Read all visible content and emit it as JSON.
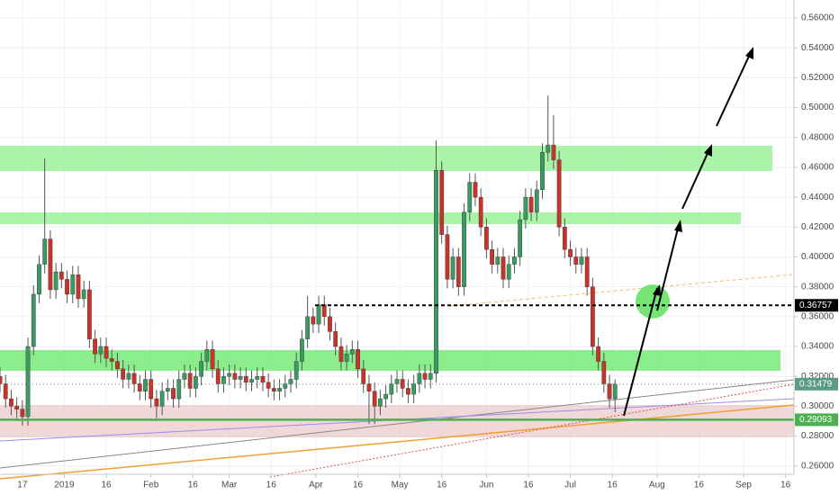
{
  "chart_data": {
    "type": "candlestick",
    "xlim": [
      -8,
      276
    ],
    "xticks": [
      {
        "value": 0,
        "label": "17"
      },
      {
        "value": 15,
        "label": "2019"
      },
      {
        "value": 30,
        "label": "16"
      },
      {
        "value": 46,
        "label": "Feb"
      },
      {
        "value": 61,
        "label": "16"
      },
      {
        "value": 74,
        "label": "Mar"
      },
      {
        "value": 89,
        "label": "16"
      },
      {
        "value": 105,
        "label": "Apr"
      },
      {
        "value": 120,
        "label": "16"
      },
      {
        "value": 135,
        "label": "May"
      },
      {
        "value": 150,
        "label": "16"
      },
      {
        "value": 166,
        "label": "Jun"
      },
      {
        "value": 181,
        "label": "16"
      },
      {
        "value": 196,
        "label": "Jul"
      },
      {
        "value": 211,
        "label": "16"
      },
      {
        "value": 227,
        "label": "Aug"
      },
      {
        "value": 242,
        "label": "16"
      },
      {
        "value": 258,
        "label": "Sep"
      },
      {
        "value": 273,
        "label": "16"
      }
    ],
    "ylim": [
      0.2544,
      0.5721
    ],
    "yticks": [
      {
        "value": 0.26,
        "label": "0.26000"
      },
      {
        "value": 0.28,
        "label": "0.28000"
      },
      {
        "value": 0.3,
        "label": "0.30000"
      },
      {
        "value": 0.32,
        "label": "0.32000"
      },
      {
        "value": 0.34,
        "label": "0.34000"
      },
      {
        "value": 0.36,
        "label": "0.36000"
      },
      {
        "value": 0.38,
        "label": "0.38000"
      },
      {
        "value": 0.4,
        "label": "0.40000"
      },
      {
        "value": 0.42,
        "label": "0.42000"
      },
      {
        "value": 0.44,
        "label": "0.44000"
      },
      {
        "value": 0.46,
        "label": "0.46000"
      },
      {
        "value": 0.48,
        "label": "0.48000"
      },
      {
        "value": 0.5,
        "label": "0.50000"
      },
      {
        "value": 0.52,
        "label": "0.52000"
      },
      {
        "value": 0.54,
        "label": "0.54000"
      },
      {
        "value": 0.56,
        "label": "0.56000"
      }
    ],
    "grid": true,
    "up_color": "#3a9a62",
    "down_color": "#c8332b",
    "wick_color": "#555555",
    "x": [
      -8,
      -6,
      -4,
      -2,
      0,
      2,
      4,
      6,
      8,
      10,
      12,
      14,
      16,
      18,
      20,
      22,
      24,
      26,
      28,
      30,
      32,
      34,
      36,
      38,
      40,
      42,
      44,
      46,
      48,
      50,
      52,
      54,
      56,
      58,
      60,
      62,
      64,
      66,
      68,
      70,
      72,
      74,
      76,
      78,
      80,
      82,
      84,
      86,
      88,
      90,
      92,
      94,
      96,
      98,
      100,
      102,
      104,
      106,
      108,
      110,
      112,
      114,
      116,
      118,
      120,
      122,
      124,
      126,
      128,
      130,
      132,
      134,
      136,
      138,
      140,
      142,
      144,
      146,
      148,
      150,
      152,
      154,
      156,
      158,
      160,
      162,
      164,
      166,
      168,
      170,
      172,
      174,
      176,
      178,
      180,
      182,
      184,
      186,
      188,
      190,
      192,
      194,
      196,
      198,
      200,
      202,
      204,
      206,
      208,
      210,
      212
    ],
    "candles": [
      [
        0.32,
        0.326,
        0.309,
        0.315
      ],
      [
        0.315,
        0.321,
        0.299,
        0.305
      ],
      [
        0.305,
        0.311,
        0.294,
        0.3
      ],
      [
        0.3,
        0.306,
        0.292,
        0.298
      ],
      [
        0.298,
        0.304,
        0.287,
        0.293
      ],
      [
        0.293,
        0.346,
        0.287,
        0.34
      ],
      [
        0.34,
        0.381,
        0.334,
        0.375
      ],
      [
        0.375,
        0.401,
        0.369,
        0.395
      ],
      [
        0.395,
        0.466,
        0.389,
        0.412
      ],
      [
        0.412,
        0.418,
        0.372,
        0.378
      ],
      [
        0.378,
        0.396,
        0.372,
        0.39
      ],
      [
        0.39,
        0.396,
        0.379,
        0.385
      ],
      [
        0.385,
        0.391,
        0.369,
        0.375
      ],
      [
        0.375,
        0.394,
        0.369,
        0.388
      ],
      [
        0.388,
        0.394,
        0.366,
        0.372
      ],
      [
        0.372,
        0.384,
        0.366,
        0.378
      ],
      [
        0.378,
        0.384,
        0.339,
        0.345
      ],
      [
        0.345,
        0.351,
        0.329,
        0.335
      ],
      [
        0.335,
        0.346,
        0.329,
        0.34
      ],
      [
        0.34,
        0.346,
        0.326,
        0.332
      ],
      [
        0.332,
        0.338,
        0.324,
        0.33
      ],
      [
        0.33,
        0.336,
        0.319,
        0.325
      ],
      [
        0.325,
        0.331,
        0.312,
        0.318
      ],
      [
        0.318,
        0.328,
        0.312,
        0.322
      ],
      [
        0.322,
        0.328,
        0.309,
        0.315
      ],
      [
        0.315,
        0.321,
        0.304,
        0.31
      ],
      [
        0.31,
        0.324,
        0.304,
        0.318
      ],
      [
        0.318,
        0.324,
        0.299,
        0.305
      ],
      [
        0.305,
        0.311,
        0.292,
        0.3
      ],
      [
        0.3,
        0.316,
        0.294,
        0.31
      ],
      [
        0.31,
        0.318,
        0.304,
        0.312
      ],
      [
        0.312,
        0.318,
        0.299,
        0.305
      ],
      [
        0.305,
        0.324,
        0.299,
        0.318
      ],
      [
        0.318,
        0.328,
        0.312,
        0.322
      ],
      [
        0.322,
        0.328,
        0.306,
        0.312
      ],
      [
        0.312,
        0.326,
        0.306,
        0.32
      ],
      [
        0.32,
        0.336,
        0.314,
        0.33
      ],
      [
        0.33,
        0.344,
        0.324,
        0.338
      ],
      [
        0.338,
        0.344,
        0.319,
        0.325
      ],
      [
        0.325,
        0.331,
        0.309,
        0.315
      ],
      [
        0.315,
        0.326,
        0.309,
        0.32
      ],
      [
        0.32,
        0.328,
        0.314,
        0.322
      ],
      [
        0.322,
        0.328,
        0.312,
        0.318
      ],
      [
        0.318,
        0.326,
        0.312,
        0.32
      ],
      [
        0.32,
        0.326,
        0.31,
        0.316
      ],
      [
        0.316,
        0.324,
        0.31,
        0.318
      ],
      [
        0.318,
        0.326,
        0.312,
        0.32
      ],
      [
        0.32,
        0.326,
        0.31,
        0.316
      ],
      [
        0.316,
        0.322,
        0.306,
        0.312
      ],
      [
        0.312,
        0.318,
        0.304,
        0.31
      ],
      [
        0.31,
        0.318,
        0.304,
        0.312
      ],
      [
        0.312,
        0.321,
        0.306,
        0.315
      ],
      [
        0.315,
        0.324,
        0.309,
        0.318
      ],
      [
        0.318,
        0.336,
        0.312,
        0.33
      ],
      [
        0.33,
        0.351,
        0.324,
        0.345
      ],
      [
        0.345,
        0.374,
        0.339,
        0.36
      ],
      [
        0.36,
        0.366,
        0.349,
        0.355
      ],
      [
        0.355,
        0.374,
        0.349,
        0.368
      ],
      [
        0.368,
        0.374,
        0.354,
        0.36
      ],
      [
        0.36,
        0.366,
        0.344,
        0.35
      ],
      [
        0.35,
        0.356,
        0.334,
        0.34
      ],
      [
        0.34,
        0.346,
        0.324,
        0.33
      ],
      [
        0.33,
        0.341,
        0.324,
        0.335
      ],
      [
        0.335,
        0.344,
        0.329,
        0.338
      ],
      [
        0.338,
        0.344,
        0.319,
        0.325
      ],
      [
        0.325,
        0.331,
        0.309,
        0.315
      ],
      [
        0.315,
        0.321,
        0.288,
        0.31
      ],
      [
        0.31,
        0.316,
        0.288,
        0.3
      ],
      [
        0.3,
        0.311,
        0.294,
        0.305
      ],
      [
        0.305,
        0.314,
        0.299,
        0.308
      ],
      [
        0.308,
        0.321,
        0.302,
        0.315
      ],
      [
        0.315,
        0.324,
        0.309,
        0.318
      ],
      [
        0.318,
        0.324,
        0.306,
        0.312
      ],
      [
        0.312,
        0.318,
        0.302,
        0.308
      ],
      [
        0.308,
        0.321,
        0.302,
        0.315
      ],
      [
        0.315,
        0.328,
        0.309,
        0.322
      ],
      [
        0.322,
        0.328,
        0.312,
        0.318
      ],
      [
        0.318,
        0.328,
        0.312,
        0.322
      ],
      [
        0.322,
        0.478,
        0.316,
        0.458
      ],
      [
        0.458,
        0.464,
        0.409,
        0.415
      ],
      [
        0.415,
        0.421,
        0.379,
        0.385
      ],
      [
        0.385,
        0.406,
        0.379,
        0.4
      ],
      [
        0.4,
        0.406,
        0.374,
        0.38
      ],
      [
        0.38,
        0.436,
        0.374,
        0.43
      ],
      [
        0.43,
        0.456,
        0.424,
        0.45
      ],
      [
        0.45,
        0.456,
        0.434,
        0.44
      ],
      [
        0.44,
        0.446,
        0.414,
        0.42
      ],
      [
        0.42,
        0.426,
        0.399,
        0.405
      ],
      [
        0.405,
        0.411,
        0.389,
        0.395
      ],
      [
        0.395,
        0.406,
        0.389,
        0.4
      ],
      [
        0.4,
        0.406,
        0.379,
        0.385
      ],
      [
        0.385,
        0.401,
        0.379,
        0.395
      ],
      [
        0.395,
        0.406,
        0.389,
        0.4
      ],
      [
        0.4,
        0.431,
        0.394,
        0.425
      ],
      [
        0.425,
        0.446,
        0.419,
        0.44
      ],
      [
        0.44,
        0.446,
        0.424,
        0.43
      ],
      [
        0.43,
        0.451,
        0.424,
        0.445
      ],
      [
        0.445,
        0.476,
        0.439,
        0.47
      ],
      [
        0.47,
        0.508,
        0.464,
        0.475
      ],
      [
        0.475,
        0.495,
        0.459,
        0.465
      ],
      [
        0.465,
        0.471,
        0.414,
        0.42
      ],
      [
        0.42,
        0.426,
        0.399,
        0.405
      ],
      [
        0.405,
        0.411,
        0.394,
        0.4
      ],
      [
        0.4,
        0.406,
        0.389,
        0.395
      ],
      [
        0.395,
        0.406,
        0.389,
        0.4
      ],
      [
        0.4,
        0.406,
        0.374,
        0.38
      ],
      [
        0.38,
        0.386,
        0.334,
        0.34
      ],
      [
        0.34,
        0.346,
        0.324,
        0.33
      ],
      [
        0.33,
        0.336,
        0.309,
        0.315
      ],
      [
        0.315,
        0.321,
        0.299,
        0.305
      ],
      [
        0.305,
        0.318,
        0.296,
        0.3148
      ]
    ],
    "price_labels": [
      {
        "value": 0.36757,
        "label": "0.36757",
        "color": "#000000",
        "style": "dashed"
      },
      {
        "value": 0.31479,
        "label": "0.31479",
        "color": "#5b9a84",
        "style": "dotted"
      },
      {
        "value": 0.29093,
        "label": "0.29093",
        "color": "#4caf50",
        "style": "solid"
      }
    ]
  }
}
